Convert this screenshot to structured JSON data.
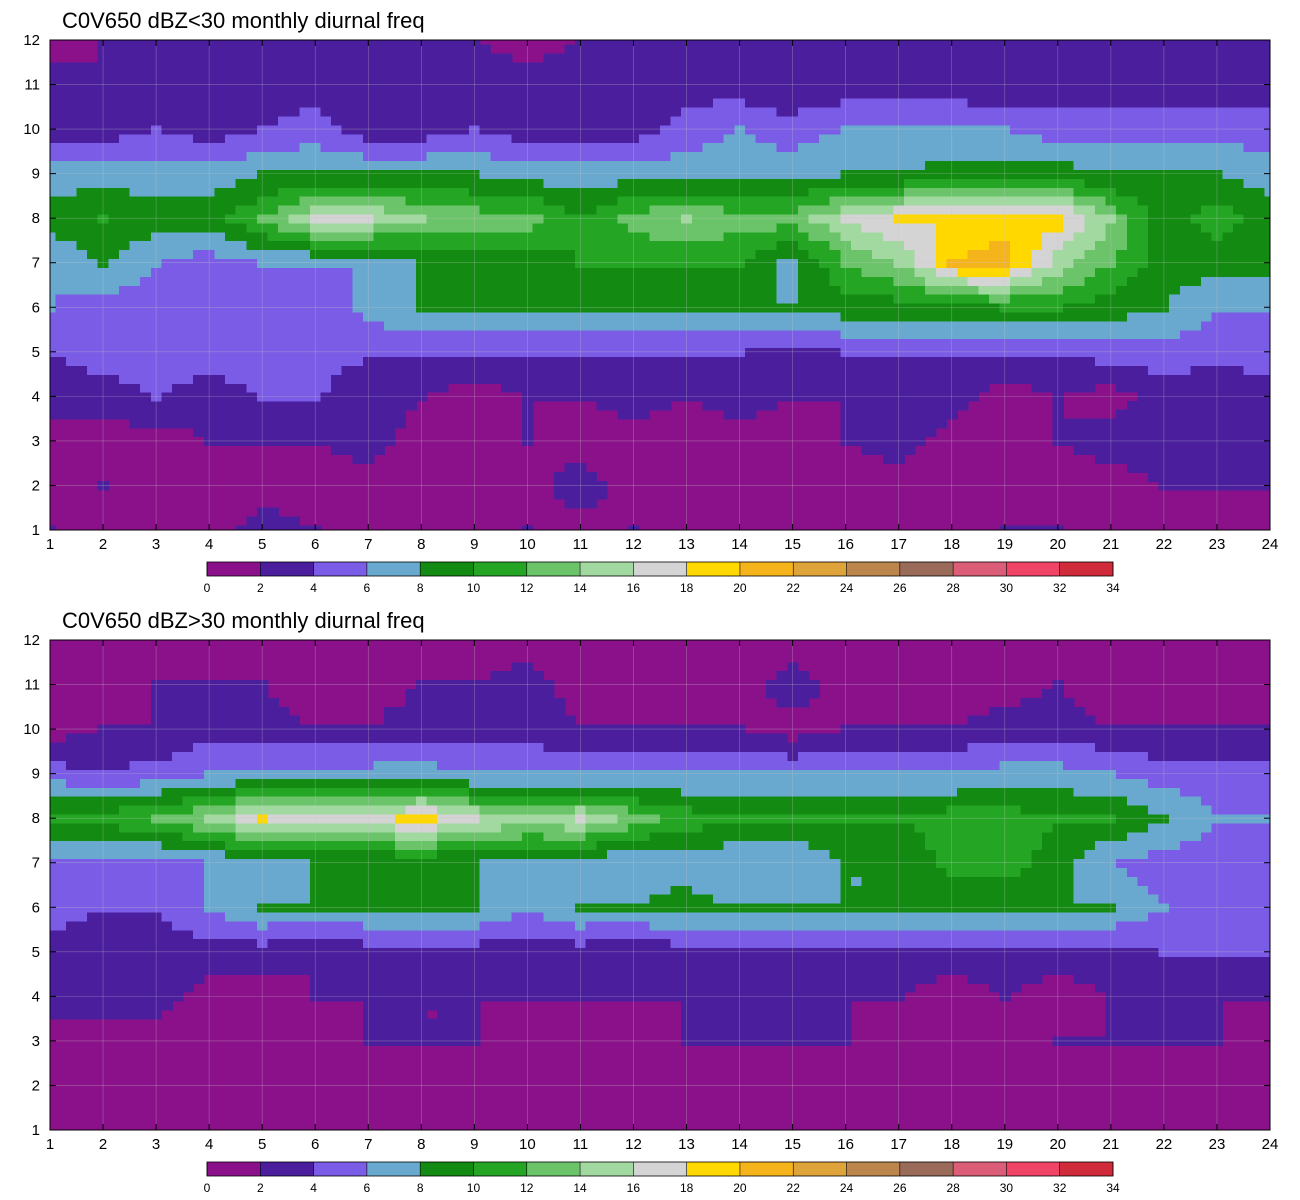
{
  "colorbar": {
    "levels": [
      0,
      2,
      4,
      6,
      8,
      10,
      12,
      14,
      16,
      18,
      20,
      22,
      24,
      26,
      28,
      30,
      32,
      34
    ],
    "colors": [
      "#8b118b",
      "#4a1e9c",
      "#7a5ce6",
      "#6aa9cf",
      "#138a12",
      "#24a624",
      "#6cc46a",
      "#a2d9a0",
      "#d4d4d4",
      "#ffd800",
      "#f6b41c",
      "#dea43a",
      "#bb854b",
      "#9a6b58",
      "#dc5d78",
      "#f04466",
      "#d02b3a"
    ],
    "contour_line_color": "#f0a532"
  },
  "chart_data": [
    {
      "type": "heatmap",
      "title": "C0V650 dBZ<30 monthly diurnal freq",
      "xlabel": "",
      "ylabel": "",
      "xlim": [
        1,
        24
      ],
      "ylim": [
        1,
        12
      ],
      "x_ticks": [
        1,
        2,
        3,
        4,
        5,
        6,
        7,
        8,
        9,
        10,
        11,
        12,
        13,
        14,
        15,
        16,
        17,
        18,
        19,
        20,
        21,
        22,
        23,
        24
      ],
      "y_ticks": [
        1,
        2,
        3,
        4,
        5,
        6,
        7,
        8,
        9,
        10,
        11,
        12
      ],
      "grid": true,
      "colorbar_position": "bottom",
      "x": [
        1,
        2,
        3,
        4,
        5,
        6,
        7,
        8,
        9,
        10,
        11,
        12,
        13,
        14,
        15,
        16,
        17,
        18,
        19,
        20,
        21,
        22,
        23,
        24
      ],
      "y": [
        1,
        2,
        3,
        4,
        5,
        6,
        7,
        8,
        9,
        10,
        11,
        12
      ],
      "z": [
        [
          2,
          1,
          1,
          1,
          3,
          2,
          1,
          1,
          1,
          2,
          1,
          2,
          1,
          1,
          1,
          1,
          1,
          1,
          2,
          2,
          1,
          1,
          1,
          1
        ],
        [
          1,
          2,
          1,
          1,
          1,
          1,
          1,
          1,
          1,
          1,
          3,
          1,
          1,
          1,
          1,
          1,
          1,
          1,
          1,
          1,
          1,
          2,
          2,
          2
        ],
        [
          1,
          1,
          1,
          2,
          2,
          2,
          3,
          1,
          1,
          2,
          1,
          1,
          1,
          1,
          1,
          2,
          3,
          1,
          1,
          2,
          3,
          3,
          3,
          3
        ],
        [
          3,
          3,
          4,
          3,
          4,
          4,
          3,
          2,
          1,
          2,
          2,
          3,
          2,
          3,
          2,
          2,
          3,
          3,
          1,
          2,
          1,
          3,
          2,
          3
        ],
        [
          4,
          5,
          5,
          5,
          5,
          5,
          4,
          4,
          4,
          4,
          4,
          4,
          4,
          4,
          3,
          4,
          4,
          4,
          4,
          4,
          5,
          5,
          5,
          5
        ],
        [
          6,
          5,
          5,
          5,
          5,
          4,
          7,
          8,
          8,
          8,
          8,
          8,
          8,
          8,
          8,
          9,
          9,
          9,
          10,
          10,
          9,
          8,
          6,
          6
        ],
        [
          6,
          8,
          6,
          5,
          6,
          6,
          6,
          8,
          8,
          9,
          10,
          10,
          10,
          10,
          7,
          12,
          14,
          20,
          21,
          15,
          12,
          9,
          9,
          9
        ],
        [
          9,
          10,
          9,
          9,
          12,
          16,
          16,
          14,
          13,
          13,
          10,
          13,
          14,
          13,
          13,
          16,
          18,
          18,
          19,
          19,
          14,
          9,
          11,
          9
        ],
        [
          7,
          7,
          7,
          7,
          8,
          8,
          8,
          8,
          8,
          7,
          7,
          7,
          7,
          7,
          7,
          8,
          8,
          9,
          9,
          9,
          8,
          8,
          8,
          7
        ],
        [
          3,
          3,
          4,
          3,
          4,
          5,
          3,
          3,
          4,
          3,
          3,
          3,
          5,
          6,
          5,
          6,
          6,
          6,
          6,
          5,
          5,
          5,
          5,
          5
        ],
        [
          3,
          2,
          3,
          3,
          3,
          3,
          3,
          2,
          3,
          3,
          3,
          3,
          3,
          3,
          2,
          3,
          3,
          3,
          2,
          3,
          3,
          3,
          3,
          3
        ],
        [
          1,
          2,
          2,
          2,
          2,
          2,
          2,
          2,
          2,
          1,
          2,
          3,
          2,
          2,
          2,
          2,
          2,
          2,
          2,
          2,
          2,
          2,
          2,
          2
        ]
      ]
    },
    {
      "type": "heatmap",
      "title": "C0V650 dBZ>30 monthly diurnal freq",
      "xlabel": "",
      "ylabel": "",
      "xlim": [
        1,
        24
      ],
      "ylim": [
        1,
        12
      ],
      "x_ticks": [
        1,
        2,
        3,
        4,
        5,
        6,
        7,
        8,
        9,
        10,
        11,
        12,
        13,
        14,
        15,
        16,
        17,
        18,
        19,
        20,
        21,
        22,
        23,
        24
      ],
      "y_ticks": [
        1,
        2,
        3,
        4,
        5,
        6,
        7,
        8,
        9,
        10,
        11,
        12
      ],
      "grid": true,
      "colorbar_position": "bottom",
      "x": [
        1,
        2,
        3,
        4,
        5,
        6,
        7,
        8,
        9,
        10,
        11,
        12,
        13,
        14,
        15,
        16,
        17,
        18,
        19,
        20,
        21,
        22,
        23,
        24
      ],
      "y": [
        1,
        2,
        3,
        4,
        5,
        6,
        7,
        8,
        9,
        10,
        11,
        12
      ],
      "z": [
        [
          1,
          1,
          1,
          1,
          1,
          1,
          1,
          1,
          1,
          1,
          1,
          1,
          1,
          1,
          1,
          1,
          1,
          1,
          1,
          1,
          1,
          1,
          1,
          1
        ],
        [
          1,
          1,
          1,
          1,
          1,
          1,
          1,
          1,
          1,
          1,
          1,
          1,
          1,
          1,
          1,
          1,
          1,
          1,
          1,
          1,
          1,
          1,
          1,
          1
        ],
        [
          1,
          1,
          1,
          1,
          1,
          1,
          2,
          2,
          2,
          1,
          1,
          1,
          2,
          2,
          2,
          2,
          1,
          1,
          1,
          2,
          2,
          2,
          2,
          1
        ],
        [
          3,
          3,
          3,
          1,
          1,
          2,
          2,
          2,
          2,
          2,
          2,
          2,
          2,
          2,
          2,
          2,
          2,
          1,
          2,
          1,
          2,
          2,
          2,
          2
        ],
        [
          3,
          3,
          3,
          3,
          3,
          2,
          3,
          3,
          3,
          3,
          3,
          2,
          3,
          3,
          3,
          3,
          3,
          3,
          3,
          3,
          3,
          4,
          4,
          4
        ],
        [
          5,
          4,
          4,
          6,
          8,
          8,
          8,
          8,
          8,
          6,
          8,
          8,
          9,
          8,
          8,
          8,
          8,
          8,
          8,
          8,
          8,
          6,
          5,
          5
        ],
        [
          5,
          5,
          5,
          6,
          7,
          8,
          8,
          8,
          8,
          7,
          7,
          6,
          7,
          6,
          6,
          8,
          8,
          11,
          11,
          9,
          6,
          5,
          5,
          5
        ],
        [
          11,
          11,
          12,
          14,
          18,
          17,
          17,
          19,
          16,
          15,
          16,
          13,
          11,
          10,
          10,
          10,
          10,
          11,
          11,
          10,
          10,
          8,
          6,
          6
        ],
        [
          5,
          4,
          5,
          6,
          6,
          7,
          7,
          7,
          6,
          6,
          6,
          6,
          6,
          6,
          6,
          6,
          6,
          6,
          7,
          7,
          6,
          5,
          5,
          5
        ],
        [
          1,
          2,
          2,
          3,
          3,
          2,
          2,
          3,
          3,
          3,
          2,
          2,
          2,
          2,
          1,
          2,
          2,
          2,
          3,
          3,
          2,
          2,
          2,
          2
        ],
        [
          1,
          1,
          2,
          2,
          2,
          1,
          1,
          2,
          2,
          3,
          1,
          1,
          1,
          1,
          3,
          1,
          1,
          1,
          1,
          2,
          1,
          1,
          1,
          1
        ],
        [
          1,
          1,
          1,
          1,
          1,
          1,
          1,
          1,
          1,
          1,
          1,
          1,
          1,
          1,
          1,
          1,
          1,
          1,
          1,
          1,
          1,
          1,
          1,
          1
        ]
      ]
    }
  ]
}
